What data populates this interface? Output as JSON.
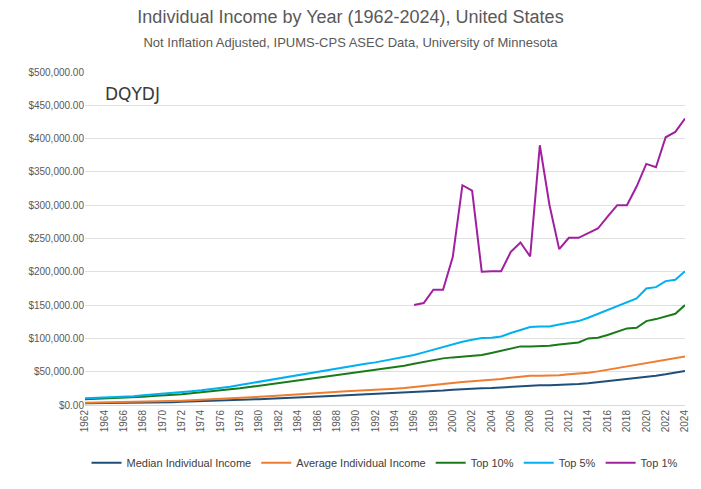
{
  "chart_data": {
    "type": "line",
    "title": "Individual Income by Year (1962-2024), United States",
    "subtitle": "Not Inflation Adjusted, IPUMS-CPS ASEC Data, University of Minnesota",
    "annotations": [
      {
        "text": "DQYDJ"
      }
    ],
    "categories": [
      "1962",
      null,
      "1964",
      null,
      "1966",
      null,
      "1968",
      null,
      "1970",
      null,
      "1972",
      null,
      "1974",
      null,
      "1976",
      null,
      "1978",
      null,
      "1980",
      null,
      "1982",
      null,
      "1984",
      null,
      "1986",
      null,
      "1988",
      null,
      "1990",
      null,
      "1992",
      null,
      "1994",
      null,
      "1996",
      null,
      "1998",
      null,
      "2000",
      null,
      "2002",
      null,
      "2004",
      null,
      "2006",
      null,
      "2008",
      null,
      "2010",
      null,
      "2012",
      null,
      "2014",
      null,
      "2016",
      null,
      "2018",
      null,
      "2020",
      null,
      "2022",
      null,
      "2024"
    ],
    "series": [
      {
        "name": "Median Individual Income",
        "color": "#1f4e79",
        "values": [
          2500,
          2600,
          2750,
          2900,
          3100,
          3300,
          3600,
          3900,
          4100,
          4300,
          4700,
          5100,
          5500,
          5900,
          6300,
          6800,
          7400,
          8100,
          8800,
          9500,
          10000,
          10500,
          11200,
          11800,
          12500,
          13100,
          13800,
          14600,
          15300,
          15800,
          16300,
          16700,
          17300,
          18000,
          18800,
          19700,
          20800,
          21800,
          23000,
          24000,
          24500,
          25000,
          25500,
          26500,
          27500,
          28500,
          29500,
          29800,
          29800,
          30000,
          30500,
          31500,
          32500,
          34000,
          35500,
          37000,
          39000,
          40500,
          41500,
          44000,
          46000,
          49000,
          51000
        ]
      },
      {
        "name": "Average Individual Income",
        "color": "#ed7d31",
        "values": [
          3400,
          3600,
          3800,
          4000,
          4300,
          4600,
          5000,
          5400,
          5700,
          6000,
          6500,
          7000,
          7600,
          8200,
          8800,
          9500,
          10300,
          11200,
          12200,
          13200,
          14000,
          14800,
          15800,
          16700,
          17600,
          18500,
          19500,
          20500,
          21500,
          22000,
          22800,
          23500,
          24500,
          25500,
          26800,
          28200,
          29800,
          31300,
          33000,
          34500,
          35500,
          36500,
          37500,
          39000,
          41000,
          43000,
          44000,
          44000,
          44000,
          44500,
          46000,
          47000,
          48500,
          50500,
          53000,
          55500,
          58000,
          61000,
          63000,
          65500,
          68500,
          70000,
          73000
        ]
      },
      {
        "name": "Top 10%",
        "color": "#1a7a1a",
        "values": [
          8500,
          9000,
          9500,
          10000,
          10800,
          11500,
          12500,
          13500,
          14200,
          15000,
          16200,
          17500,
          18800,
          20000,
          21500,
          23000,
          25000,
          27000,
          29000,
          31000,
          33000,
          35000,
          37000,
          39000,
          41000,
          43000,
          44500,
          46000,
          48000,
          50000,
          52000,
          54000,
          56500,
          59000,
          62000,
          65000,
          68000,
          70000,
          71500,
          73000,
          74000,
          75000,
          78000,
          81000,
          85000,
          88000,
          88000,
          88000,
          89000,
          91000,
          93000,
          94000,
          100000,
          101000,
          105000,
          110000,
          115000,
          116000,
          126000,
          129000,
          133000,
          137000,
          150000
        ]
      },
      {
        "name": "Top 5%",
        "color": "#00b0f0",
        "values": [
          10000,
          10500,
          11000,
          11800,
          12500,
          13300,
          14500,
          15500,
          16500,
          17500,
          19000,
          20500,
          22000,
          23500,
          25500,
          27500,
          30000,
          32500,
          35000,
          38000,
          40500,
          43000,
          45500,
          48000,
          50500,
          53000,
          55500,
          58000,
          60000,
          62000,
          64000,
          66500,
          69000,
          72000,
          75000,
          79000,
          83000,
          88000,
          92000,
          95000,
          98000,
          100500,
          101000,
          103000,
          108000,
          113000,
          117000,
          118000,
          118000,
          121000,
          124000,
          126000,
          131000,
          137000,
          143000,
          149000,
          155000,
          160000,
          175000,
          177000,
          186000,
          188000,
          201000
        ]
      },
      {
        "name": "Top 1%",
        "color": "#a0209f",
        "values": [
          null,
          null,
          null,
          null,
          null,
          null,
          null,
          null,
          null,
          null,
          null,
          null,
          null,
          null,
          null,
          null,
          null,
          null,
          null,
          null,
          null,
          null,
          null,
          null,
          null,
          null,
          null,
          null,
          null,
          null,
          null,
          null,
          null,
          null,
          150000,
          153000,
          173000,
          173000,
          222000,
          330000,
          322000,
          200000,
          201000,
          201000,
          230000,
          244000,
          223000,
          390000,
          300000,
          234000,
          251000,
          251000,
          258000,
          265000,
          283000,
          300000,
          300000,
          328000,
          362000,
          357000,
          402000,
          410000,
          430000
        ]
      }
    ],
    "ylim": [
      0,
      500000
    ],
    "yticks": [
      {
        "value": 0,
        "label": "$0.00"
      },
      {
        "value": 50000,
        "label": "$50,000.00"
      },
      {
        "value": 100000,
        "label": "$100,000.00"
      },
      {
        "value": 150000,
        "label": "$150,000.00"
      },
      {
        "value": 200000,
        "label": "$200,000.00"
      },
      {
        "value": 250000,
        "label": "$250,000.00"
      },
      {
        "value": 300000,
        "label": "$300,000.00"
      },
      {
        "value": 350000,
        "label": "$350,000.00"
      },
      {
        "value": 400000,
        "label": "$400,000.00"
      },
      {
        "value": 450000,
        "label": "$450,000.00"
      },
      {
        "value": 500000,
        "label": "$500,000.00"
      }
    ],
    "grid": true,
    "legend": "bottom"
  }
}
